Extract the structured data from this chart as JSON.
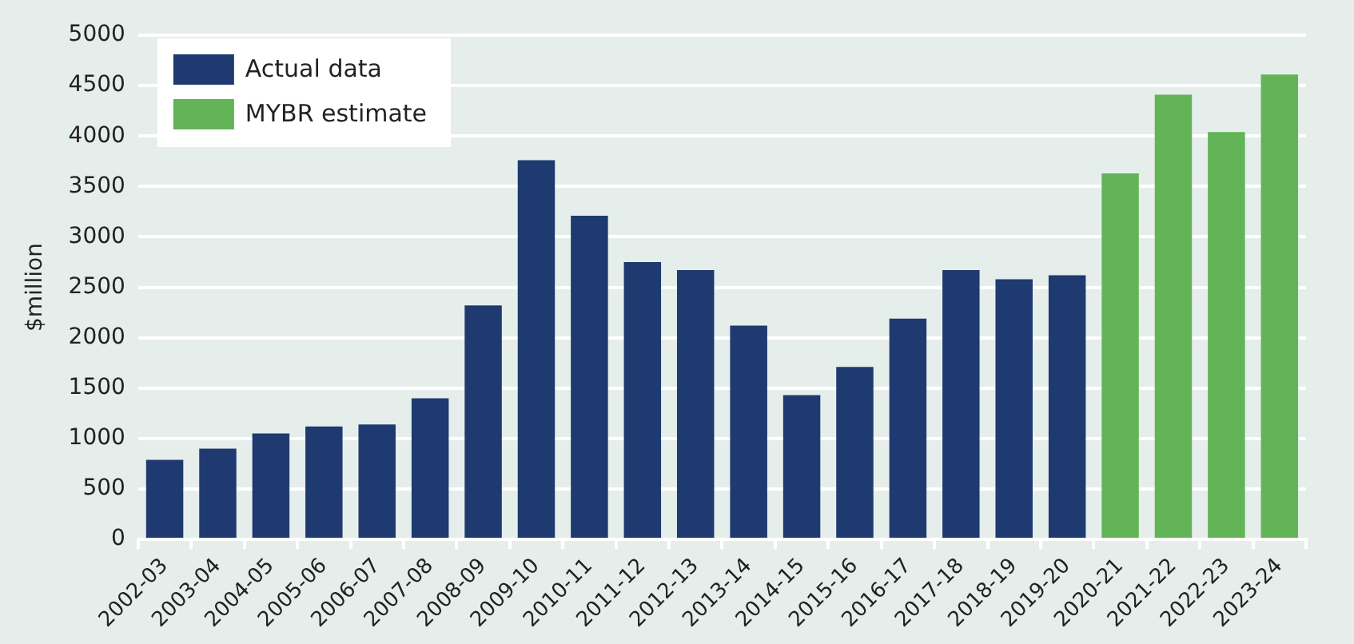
{
  "chart_data": {
    "type": "bar",
    "ylabel": "$million",
    "categories": [
      "2002-03",
      "2003-04",
      "2004-05",
      "2005-06",
      "2006-07",
      "2007-08",
      "2008-09",
      "2009-10",
      "2010-11",
      "2011-12",
      "2012-13",
      "2013-14",
      "2014-15",
      "2015-16",
      "2016-17",
      "2017-18",
      "2018-19",
      "2019-20",
      "2020-21",
      "2021-22",
      "2022-23",
      "2023-24"
    ],
    "series": [
      {
        "name": "Actual data",
        "color": "#1f3a70",
        "values": [
          790,
          900,
          1050,
          1120,
          1140,
          1400,
          2320,
          3760,
          3210,
          2750,
          2670,
          2120,
          1430,
          1710,
          2190,
          2670,
          2580,
          2620,
          null,
          null,
          null,
          null
        ]
      },
      {
        "name": "MYBR estimate",
        "color": "#62b457",
        "values": [
          null,
          null,
          null,
          null,
          null,
          null,
          null,
          null,
          null,
          null,
          null,
          null,
          null,
          null,
          null,
          null,
          null,
          null,
          3630,
          4410,
          4040,
          4610
        ]
      }
    ],
    "stacked": true,
    "ylim": [
      0,
      5000
    ],
    "yticks": [
      0,
      500,
      1000,
      1500,
      2000,
      2500,
      3000,
      3500,
      4000,
      4500,
      5000
    ],
    "grid": "y",
    "legend": "top left"
  }
}
